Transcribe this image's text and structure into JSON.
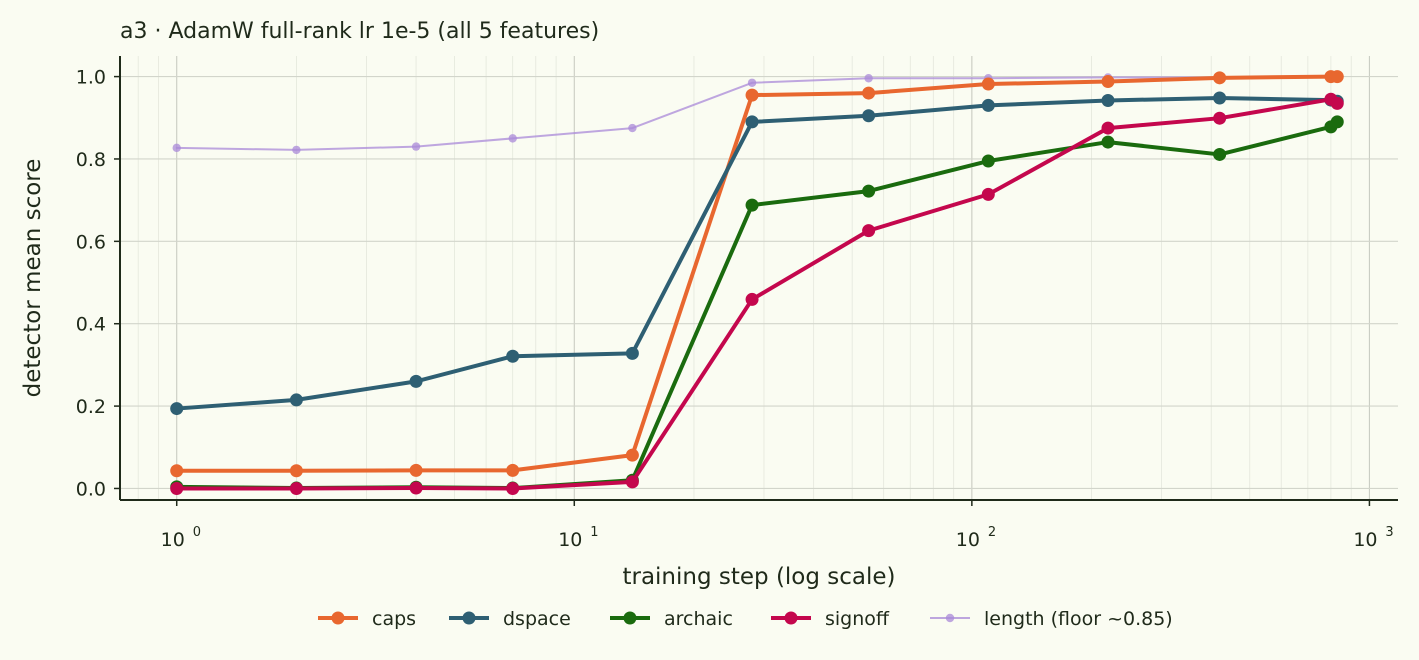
{
  "chart_data": {
    "type": "line",
    "title": "a3 · AdamW full-rank lr 1e-5 (all 5 features)",
    "xlabel": "training step (log scale)",
    "ylabel": "detector mean score",
    "x_scale": "log",
    "xlim": [
      0.72,
      1180
    ],
    "ylim": [
      -0.028,
      1.05
    ],
    "grid": true,
    "legend_position": "bottom-center",
    "x_ticks": [
      {
        "base": "10",
        "exp": "0",
        "value": 1
      },
      {
        "base": "10",
        "exp": "1",
        "value": 10
      },
      {
        "base": "10",
        "exp": "2",
        "value": 100
      },
      {
        "base": "10",
        "exp": "3",
        "value": 1000
      }
    ],
    "y_ticks": [
      {
        "label": "0.0",
        "value": 0
      },
      {
        "label": "0.2",
        "value": 0.2
      },
      {
        "label": "0.4",
        "value": 0.4
      },
      {
        "label": "0.6",
        "value": 0.6
      },
      {
        "label": "0.8",
        "value": 0.8
      },
      {
        "label": "1.0",
        "value": 1.0
      }
    ],
    "x": [
      1,
      2,
      4,
      7,
      14,
      28,
      55,
      110,
      220,
      420,
      800,
      830
    ],
    "series": [
      {
        "name": "caps",
        "color": "#e8672f",
        "style": "bold",
        "values": [
          0.043,
          0.043,
          0.044,
          0.044,
          0.081,
          0.955,
          0.96,
          0.982,
          0.988,
          0.997,
          1.0,
          1.0
        ]
      },
      {
        "name": "dspace",
        "color": "#2e5f73",
        "style": "bold",
        "values": [
          0.194,
          0.215,
          0.26,
          0.321,
          0.328,
          0.89,
          0.905,
          0.93,
          0.942,
          0.948,
          0.943,
          0.94
        ]
      },
      {
        "name": "archaic",
        "color": "#1a6b0e",
        "style": "bold",
        "values": [
          0.004,
          0.001,
          0.003,
          0.001,
          0.02,
          0.688,
          0.722,
          0.795,
          0.841,
          0.811,
          0.878,
          0.89
        ]
      },
      {
        "name": "signoff",
        "color": "#c4074d",
        "style": "bold",
        "values": [
          0.0,
          0.0,
          0.001,
          0.0,
          0.016,
          0.459,
          0.626,
          0.714,
          0.875,
          0.899,
          0.945,
          0.935
        ]
      },
      {
        "name": "length (floor ~0.85)",
        "color": "#a98ad8",
        "style": "thin",
        "values": [
          0.827,
          0.822,
          0.83,
          0.85,
          0.875,
          0.985,
          0.996,
          0.996,
          0.998,
          0.998,
          0.999,
          0.999
        ]
      }
    ]
  }
}
